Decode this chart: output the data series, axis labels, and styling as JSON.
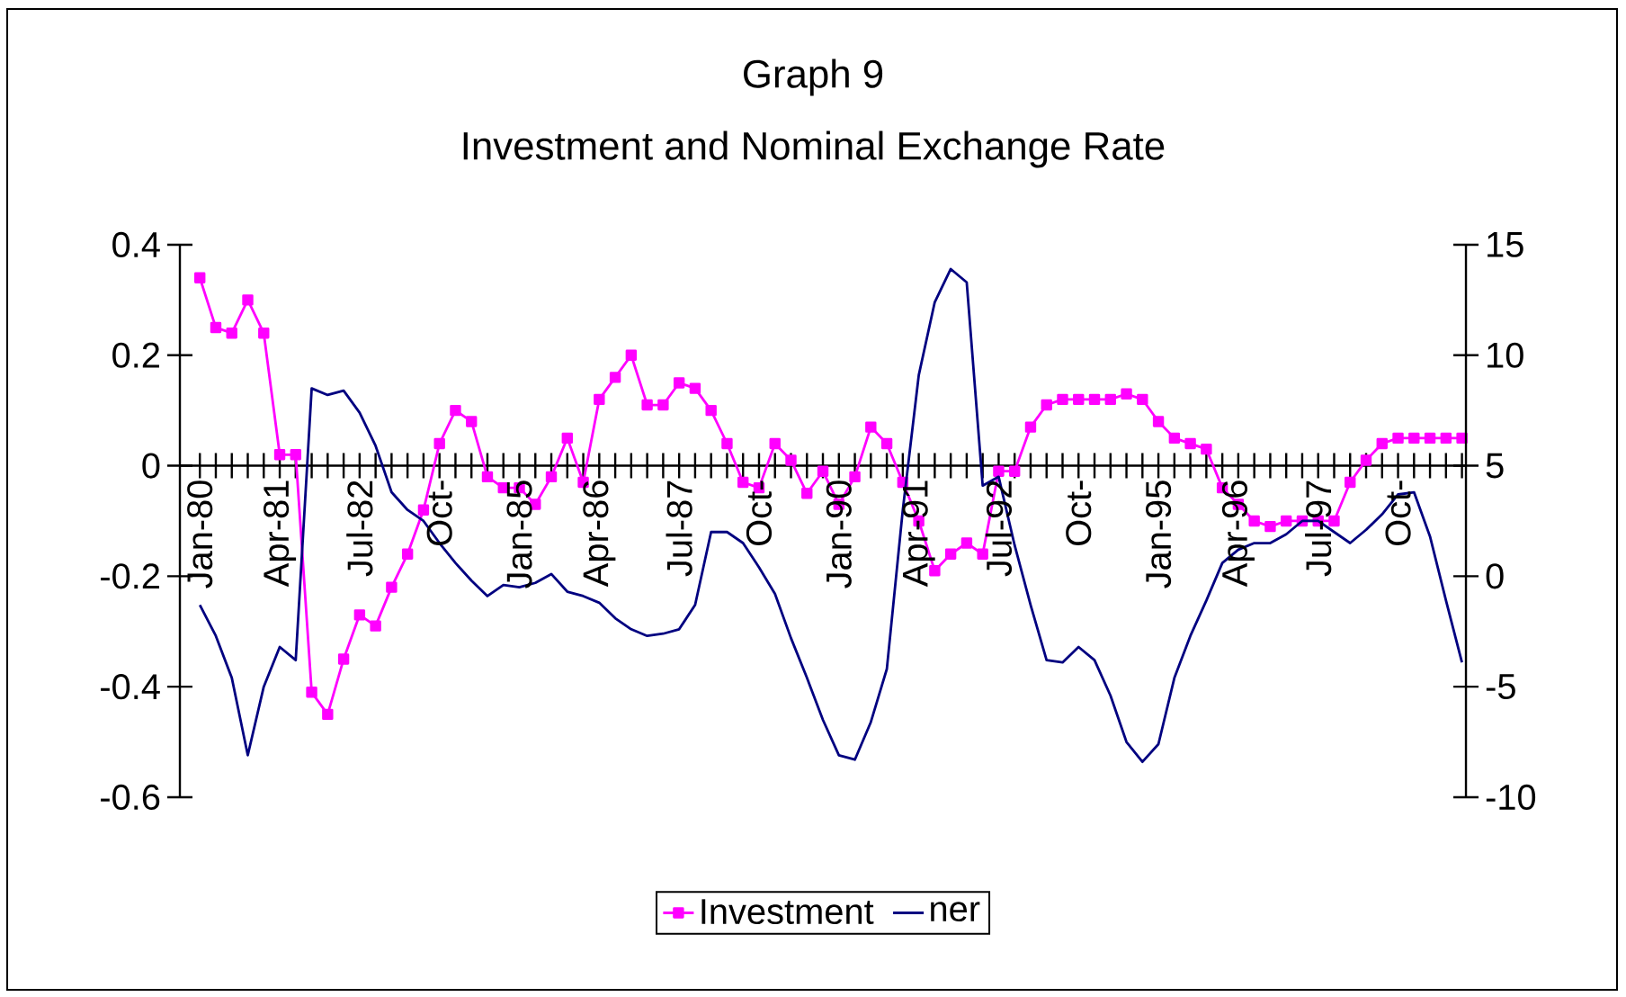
{
  "chart_data": {
    "type": "line",
    "title": "Graph 9",
    "subtitle": "Investment and Nominal Exchange Rate",
    "categories": [
      "Jan-80",
      null,
      null,
      null,
      null,
      "Apr-81",
      null,
      null,
      null,
      null,
      "Jul-82",
      null,
      null,
      null,
      null,
      "Oct-",
      null,
      null,
      null,
      null,
      "Jan-85",
      null,
      null,
      null,
      null,
      "Apr-86",
      null,
      null,
      null,
      null,
      "Jul-87",
      null,
      null,
      null,
      null,
      "Oct-",
      null,
      null,
      null,
      null,
      "Jan-90",
      null,
      null,
      null,
      null,
      "Apr-91",
      null,
      null,
      null,
      null,
      "Jul-92",
      null,
      null,
      null,
      null,
      "Oct-",
      null,
      null,
      null,
      null,
      "Jan-95",
      null,
      null,
      null,
      null,
      "Apr-96",
      null,
      null,
      null,
      null,
      "Jul-97",
      null,
      null,
      null,
      null,
      "Oct-",
      null,
      null,
      null,
      null
    ],
    "series": [
      {
        "name": "Investment",
        "color": "#ff00ff",
        "marker": "square",
        "values": [
          0.34,
          0.25,
          0.24,
          0.3,
          0.24,
          0.02,
          0.02,
          -0.41,
          -0.45,
          -0.35,
          -0.27,
          -0.29,
          -0.22,
          -0.16,
          -0.08,
          0.04,
          0.1,
          0.08,
          -0.02,
          -0.04,
          -0.04,
          -0.07,
          -0.02,
          0.05,
          -0.03,
          0.12,
          0.16,
          0.2,
          0.11,
          0.11,
          0.15,
          0.14,
          0.1,
          0.04,
          -0.03,
          -0.04,
          0.04,
          0.01,
          -0.05,
          -0.01,
          -0.07,
          -0.02,
          0.07,
          0.04,
          -0.03,
          -0.1,
          -0.19,
          -0.16,
          -0.14,
          -0.16,
          -0.01,
          -0.01,
          0.07,
          0.11,
          0.12,
          0.12,
          0.12,
          0.12,
          0.13,
          0.12,
          0.08,
          0.05,
          0.04,
          0.03,
          -0.04,
          -0.07,
          -0.1,
          -0.11,
          -0.1,
          -0.1,
          -0.1,
          -0.1,
          -0.03,
          0.01,
          0.04,
          0.05,
          0.05,
          0.05,
          0.05,
          0.05
        ]
      },
      {
        "name": "ner",
        "color": "#000080",
        "axis": "y2",
        "values": [
          -1.3,
          -2.7,
          -4.6,
          -8.1,
          -5.0,
          -3.2,
          -3.8,
          8.5,
          8.2,
          8.4,
          7.4,
          5.9,
          3.8,
          3.0,
          2.5,
          1.5,
          0.6,
          -0.2,
          -0.9,
          -0.4,
          -0.5,
          -0.3,
          0.1,
          -0.7,
          -0.9,
          -1.2,
          -1.9,
          -2.4,
          -2.7,
          -2.6,
          -2.4,
          -1.3,
          2.0,
          2.0,
          1.5,
          0.4,
          -0.8,
          -2.8,
          -4.6,
          -6.5,
          -8.1,
          -8.3,
          -6.6,
          -4.2,
          3.0,
          9.1,
          12.4,
          13.9,
          13.3,
          4.1,
          4.5,
          1.4,
          -1.3,
          -3.8,
          -3.9,
          -3.2,
          -3.8,
          -5.4,
          -7.5,
          -8.4,
          -7.6,
          -4.6,
          -2.7,
          -1.1,
          0.6,
          1.2,
          1.5,
          1.5,
          1.9,
          2.5,
          2.5,
          2.0,
          1.5,
          2.1,
          2.8,
          3.7,
          3.8,
          1.8,
          -1.1,
          -3.9
        ]
      }
    ],
    "ylim": [
      -0.6,
      0.4
    ],
    "yticks": [
      -0.6,
      -0.4,
      -0.2,
      0,
      0.2,
      0.4
    ],
    "y2lim": [
      -10,
      15
    ],
    "y2ticks": [
      -10,
      -5,
      0,
      5,
      10,
      15
    ],
    "legend": "bottom"
  }
}
